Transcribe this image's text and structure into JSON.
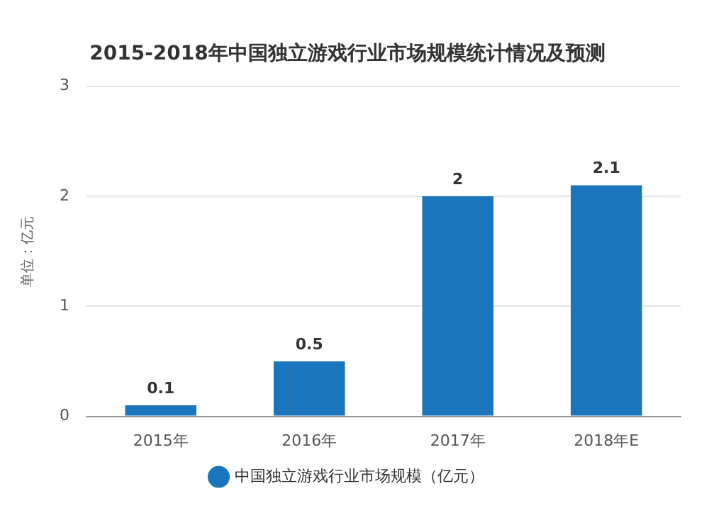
{
  "chart_data": {
    "type": "bar",
    "title": "2015-2018年中国独立游戏行业市场规模统计情况及预测",
    "ylabel": "单位：亿元",
    "categories": [
      "2015年",
      "2016年",
      "2017年",
      "2018年E"
    ],
    "series": [
      {
        "name": "中国独立游戏行业市场规模（亿元）",
        "color": "#1a75bc",
        "values": [
          0.1,
          0.5,
          2,
          2.1
        ]
      }
    ],
    "ylim": [
      0,
      3
    ],
    "yticks": [
      0,
      1,
      2,
      3
    ],
    "grid": "y",
    "legend": "bottom",
    "data_labels": true
  }
}
